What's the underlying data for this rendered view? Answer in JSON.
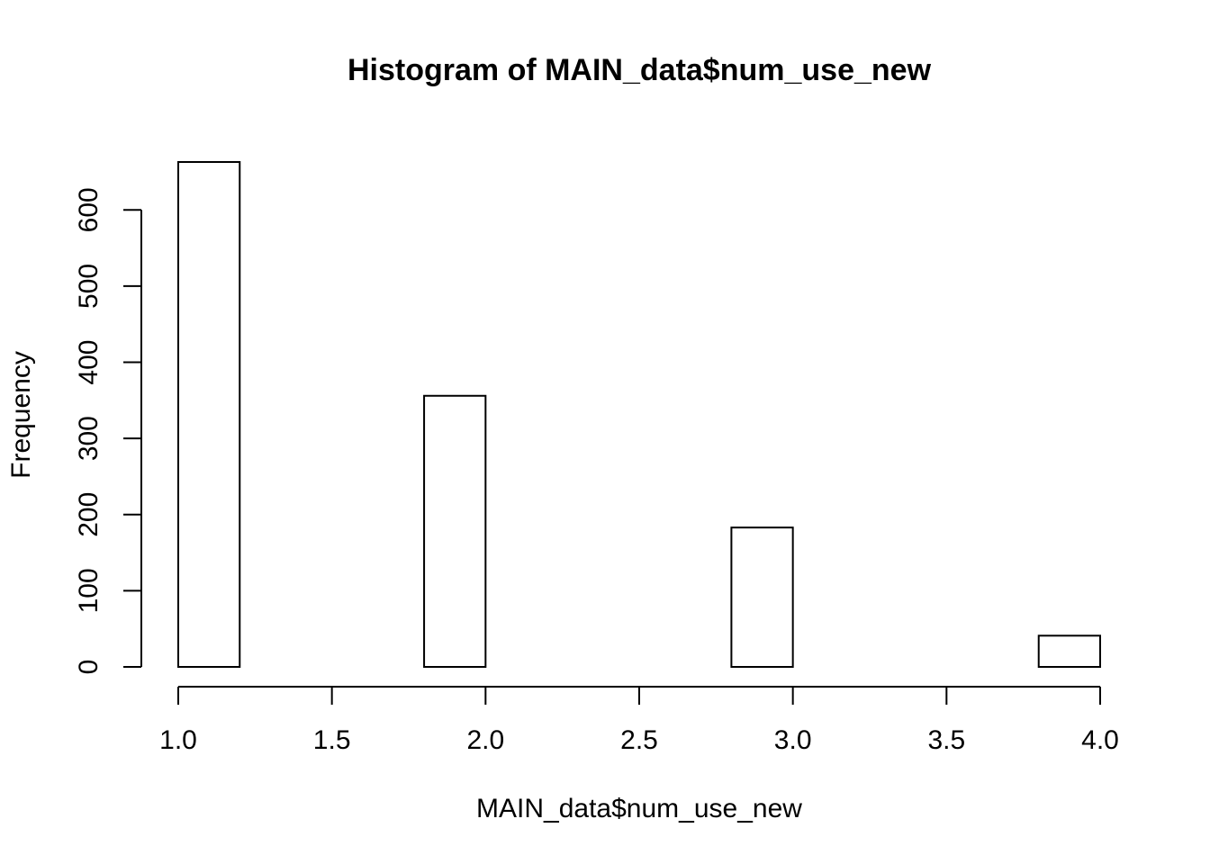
{
  "chart_data": {
    "type": "histogram",
    "title": "Histogram of MAIN_data$num_use_new",
    "x_label": "MAIN_data$num_use_new",
    "y_label": "Frequency",
    "bins": [
      1.0,
      1.2,
      1.4,
      1.6,
      1.8,
      2.0,
      2.2,
      2.4,
      2.6,
      2.8,
      3.0,
      3.2,
      3.4,
      3.6,
      3.8,
      4.0
    ],
    "values": [
      663,
      0,
      0,
      0,
      356,
      0,
      0,
      0,
      0,
      183,
      0,
      0,
      0,
      0,
      41
    ],
    "color": "#ffffff",
    "xlim": [
      1,
      4
    ],
    "xticks": [
      {
        "value": 1,
        "label": "1.0"
      },
      {
        "value": 1.5,
        "label": "1.5"
      },
      {
        "value": 2,
        "label": "2.0"
      },
      {
        "value": 2.5,
        "label": "2.5"
      },
      {
        "value": 3,
        "label": "3.0"
      },
      {
        "value": 3.5,
        "label": "3.5"
      },
      {
        "value": 4,
        "label": "4.0"
      }
    ],
    "ylim": [
      0,
      663
    ],
    "yticks": [
      0,
      100,
      200,
      300,
      400,
      500,
      600
    ],
    "grid": false
  }
}
